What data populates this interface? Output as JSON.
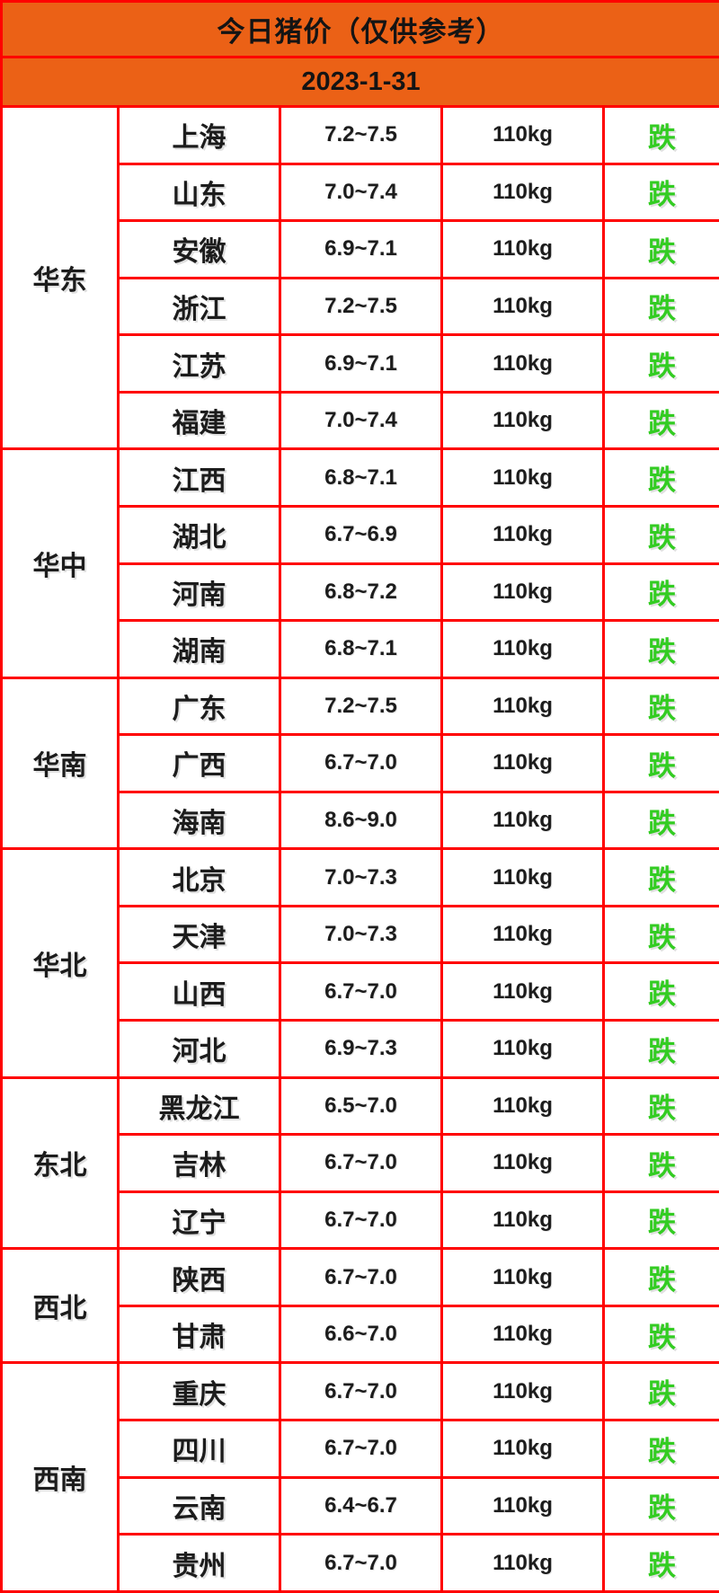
{
  "header": {
    "title": "今日猪价（仅供参考）",
    "date": "2023-1-31"
  },
  "colors": {
    "header_bg": "#EB6116",
    "grid_border": "#FF0000",
    "cell_bg": "#FFFFFF",
    "text": "#1C1C1C",
    "status_down_green": "#33CC22"
  },
  "chart_data": {
    "type": "table",
    "title": "今日猪价（仅供参考）",
    "date": "2023-1-31",
    "regions": [
      {
        "region": "华东",
        "rows": [
          {
            "province": "上海",
            "price": "7.2~7.5",
            "weight": "110kg",
            "status": "跌"
          },
          {
            "province": "山东",
            "price": "7.0~7.4",
            "weight": "110kg",
            "status": "跌"
          },
          {
            "province": "安徽",
            "price": "6.9~7.1",
            "weight": "110kg",
            "status": "跌"
          },
          {
            "province": "浙江",
            "price": "7.2~7.5",
            "weight": "110kg",
            "status": "跌"
          },
          {
            "province": "江苏",
            "price": "6.9~7.1",
            "weight": "110kg",
            "status": "跌"
          },
          {
            "province": "福建",
            "price": "7.0~7.4",
            "weight": "110kg",
            "status": "跌"
          }
        ]
      },
      {
        "region": "华中",
        "rows": [
          {
            "province": "江西",
            "price": "6.8~7.1",
            "weight": "110kg",
            "status": "跌"
          },
          {
            "province": "湖北",
            "price": "6.7~6.9",
            "weight": "110kg",
            "status": "跌"
          },
          {
            "province": "河南",
            "price": "6.8~7.2",
            "weight": "110kg",
            "status": "跌"
          },
          {
            "province": "湖南",
            "price": "6.8~7.1",
            "weight": "110kg",
            "status": "跌"
          }
        ]
      },
      {
        "region": "华南",
        "rows": [
          {
            "province": "广东",
            "price": "7.2~7.5",
            "weight": "110kg",
            "status": "跌"
          },
          {
            "province": "广西",
            "price": "6.7~7.0",
            "weight": "110kg",
            "status": "跌"
          },
          {
            "province": "海南",
            "price": "8.6~9.0",
            "weight": "110kg",
            "status": "跌"
          }
        ]
      },
      {
        "region": "华北",
        "rows": [
          {
            "province": "北京",
            "price": "7.0~7.3",
            "weight": "110kg",
            "status": "跌"
          },
          {
            "province": "天津",
            "price": "7.0~7.3",
            "weight": "110kg",
            "status": "跌"
          },
          {
            "province": "山西",
            "price": "6.7~7.0",
            "weight": "110kg",
            "status": "跌"
          },
          {
            "province": "河北",
            "price": "6.9~7.3",
            "weight": "110kg",
            "status": "跌"
          }
        ]
      },
      {
        "region": "东北",
        "rows": [
          {
            "province": "黑龙江",
            "price": "6.5~7.0",
            "weight": "110kg",
            "status": "跌"
          },
          {
            "province": "吉林",
            "price": "6.7~7.0",
            "weight": "110kg",
            "status": "跌"
          },
          {
            "province": "辽宁",
            "price": "6.7~7.0",
            "weight": "110kg",
            "status": "跌"
          }
        ]
      },
      {
        "region": "西北",
        "rows": [
          {
            "province": "陕西",
            "price": "6.7~7.0",
            "weight": "110kg",
            "status": "跌"
          },
          {
            "province": "甘肃",
            "price": "6.6~7.0",
            "weight": "110kg",
            "status": "跌"
          }
        ]
      },
      {
        "region": "西南",
        "rows": [
          {
            "province": "重庆",
            "price": "6.7~7.0",
            "weight": "110kg",
            "status": "跌"
          },
          {
            "province": "四川",
            "price": "6.7~7.0",
            "weight": "110kg",
            "status": "跌"
          },
          {
            "province": "云南",
            "price": "6.4~6.7",
            "weight": "110kg",
            "status": "跌"
          },
          {
            "province": "贵州",
            "price": "6.7~7.0",
            "weight": "110kg",
            "status": "跌"
          }
        ]
      }
    ]
  }
}
